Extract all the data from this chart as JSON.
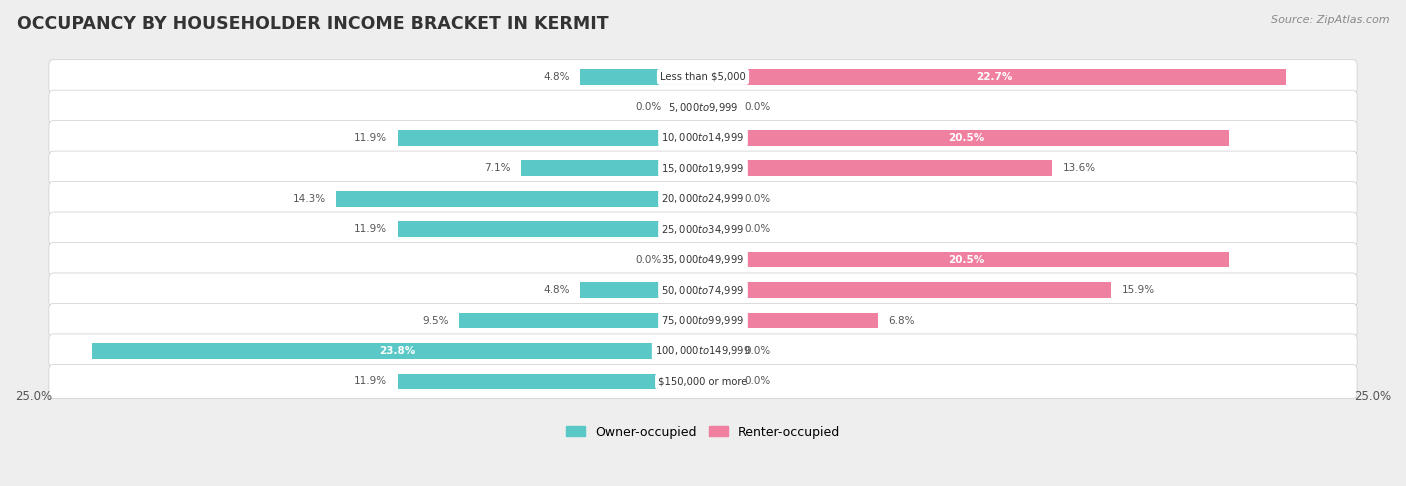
{
  "title": "OCCUPANCY BY HOUSEHOLDER INCOME BRACKET IN KERMIT",
  "source": "Source: ZipAtlas.com",
  "categories": [
    "Less than $5,000",
    "$5,000 to $9,999",
    "$10,000 to $14,999",
    "$15,000 to $19,999",
    "$20,000 to $24,999",
    "$25,000 to $34,999",
    "$35,000 to $49,999",
    "$50,000 to $74,999",
    "$75,000 to $99,999",
    "$100,000 to $149,999",
    "$150,000 or more"
  ],
  "owner_values": [
    4.8,
    0.0,
    11.9,
    7.1,
    14.3,
    11.9,
    0.0,
    4.8,
    9.5,
    23.8,
    11.9
  ],
  "renter_values": [
    22.7,
    0.0,
    20.5,
    13.6,
    0.0,
    0.0,
    20.5,
    15.9,
    6.8,
    0.0,
    0.0
  ],
  "owner_color": "#5bc8c8",
  "renter_color": "#f080a0",
  "owner_color_light": "#a8e4e4",
  "renter_color_light": "#f8b8cc",
  "background_color": "#eeeeee",
  "bar_background": "#ffffff",
  "max_val": 25.0,
  "bar_height": 0.52,
  "legend_owner": "Owner-occupied",
  "legend_renter": "Renter-occupied"
}
